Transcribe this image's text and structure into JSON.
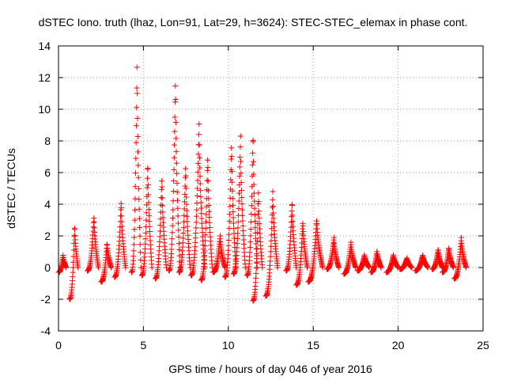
{
  "chart_data": {
    "type": "scatter",
    "title": "dSTEC Iono. truth (lhaz, Lon=91, Lat=29, h=3624): STEC-STEC_elemax in phase cont.",
    "xlabel": "GPS time / hours of day 046 of year 2016",
    "ylabel": "dSTEC  / TECUs",
    "xlim": [
      0,
      25
    ],
    "ylim": [
      -4,
      14
    ],
    "x_ticks": [
      0,
      5,
      10,
      15,
      20,
      25
    ],
    "y_ticks": [
      -4,
      -2,
      0,
      2,
      4,
      6,
      8,
      10,
      12,
      14
    ],
    "x_tick_labels": [
      "0",
      "5",
      "10",
      "15",
      "20",
      "25"
    ],
    "y_tick_labels": [
      "-4",
      "-2",
      "0",
      "2",
      "4",
      "6",
      "8",
      "10",
      "12",
      "14"
    ],
    "grid": true,
    "marker": "plus",
    "color": "#ff0000",
    "arcs": [
      {
        "t0": 0.0,
        "t1": 0.45,
        "y0": -0.3,
        "y1": 0.8
      },
      {
        "t0": 0.65,
        "t1": 1.15,
        "y0": -2.0,
        "y1": 2.8
      },
      {
        "t0": 1.7,
        "t1": 2.35,
        "y0": -0.2,
        "y1": 3.3
      },
      {
        "t0": 2.5,
        "t1": 3.1,
        "y0": -0.9,
        "y1": 1.6
      },
      {
        "t0": 3.3,
        "t1": 3.95,
        "y0": -0.6,
        "y1": 4.3
      },
      {
        "t0": 4.3,
        "t1": 4.85,
        "y0": -0.3,
        "y1": 13.2
      },
      {
        "t0": 4.9,
        "t1": 5.5,
        "y0": -0.5,
        "y1": 6.8
      },
      {
        "t0": 5.7,
        "t1": 6.35,
        "y0": -0.7,
        "y1": 5.8
      },
      {
        "t0": 6.5,
        "t1": 7.15,
        "y0": -0.2,
        "y1": 12.1
      },
      {
        "t0": 7.1,
        "t1": 7.75,
        "y0": -0.3,
        "y1": 6.6
      },
      {
        "t0": 7.8,
        "t1": 8.6,
        "y0": -0.5,
        "y1": 9.2
      },
      {
        "t0": 8.4,
        "t1": 9.05,
        "y0": -0.8,
        "y1": 7.2
      },
      {
        "t0": 9.1,
        "t1": 9.8,
        "y0": -0.3,
        "y1": 2.0
      },
      {
        "t0": 9.8,
        "t1": 10.45,
        "y0": -0.6,
        "y1": 8.0
      },
      {
        "t0": 10.3,
        "t1": 11.0,
        "y0": -0.4,
        "y1": 8.3
      },
      {
        "t0": 11.1,
        "t1": 11.7,
        "y0": -0.5,
        "y1": 8.7
      },
      {
        "t0": 11.45,
        "t1": 12.0,
        "y0": -2.1,
        "y1": 5.0
      },
      {
        "t0": 12.2,
        "t1": 12.9,
        "y0": -1.8,
        "y1": 4.8
      },
      {
        "t0": 13.4,
        "t1": 14.0,
        "y0": -0.2,
        "y1": 4.3
      },
      {
        "t0": 14.0,
        "t1": 14.65,
        "y0": -1.1,
        "y1": 3.0
      },
      {
        "t0": 14.7,
        "t1": 15.55,
        "y0": -0.9,
        "y1": 3.1
      },
      {
        "t0": 15.8,
        "t1": 16.5,
        "y0": -0.1,
        "y1": 1.9
      },
      {
        "t0": 16.8,
        "t1": 17.5,
        "y0": -0.4,
        "y1": 1.6
      },
      {
        "t0": 17.6,
        "t1": 18.3,
        "y0": -0.2,
        "y1": 0.8
      },
      {
        "t0": 18.4,
        "t1": 19.0,
        "y0": -0.3,
        "y1": 1.1
      },
      {
        "t0": 19.3,
        "t1": 20.0,
        "y0": -0.3,
        "y1": 0.8
      },
      {
        "t0": 20.1,
        "t1": 20.8,
        "y0": -0.1,
        "y1": 0.6
      },
      {
        "t0": 21.0,
        "t1": 21.75,
        "y0": -0.2,
        "y1": 0.8
      },
      {
        "t0": 22.0,
        "t1": 22.6,
        "y0": -0.1,
        "y1": 1.2
      },
      {
        "t0": 22.6,
        "t1": 23.25,
        "y0": -0.3,
        "y1": 1.3
      },
      {
        "t0": 23.3,
        "t1": 24.0,
        "y0": -0.7,
        "y1": 1.9
      }
    ]
  }
}
